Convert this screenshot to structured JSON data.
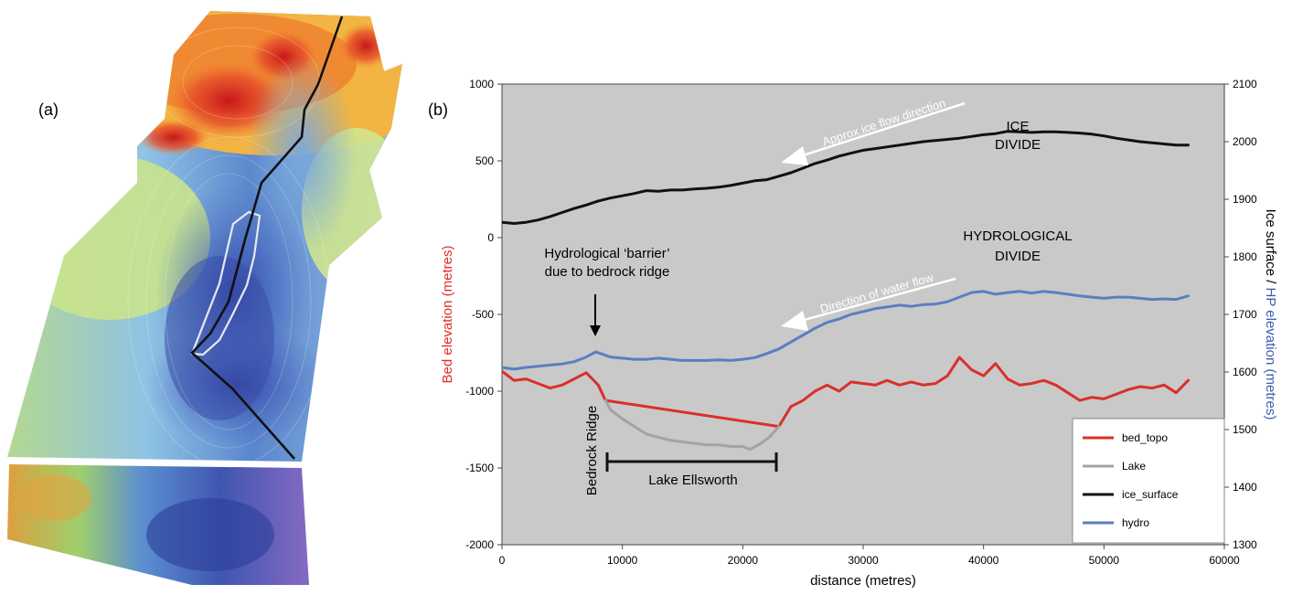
{
  "panel_a": {
    "label": "(a)"
  },
  "panel_b": {
    "label": "(b)"
  },
  "chart_data": {
    "type": "line",
    "title": "",
    "xlabel": "distance (metres)",
    "ylabel_left": "Bed elevation (metres)",
    "ylabel_right_parts": [
      "Ice surface / ",
      "HP elevation (metres)"
    ],
    "xlim": [
      0,
      60000
    ],
    "ylim_left": [
      -2000,
      1000
    ],
    "ylim_right": [
      1300,
      2100
    ],
    "x_ticks": [
      "0",
      "10000",
      "20000",
      "30000",
      "40000",
      "50000",
      "60000"
    ],
    "y_left_ticks": [
      "1000",
      "500",
      "0",
      "-500",
      "-1000",
      "-1500",
      "-2000"
    ],
    "y_right_ticks": [
      "2100",
      "2000",
      "1900",
      "1800",
      "1700",
      "1600",
      "1500",
      "1400",
      "1300"
    ],
    "grid": false,
    "legend_position": "bottom-right",
    "series": [
      {
        "name": "bed_topo",
        "color": "#d9302b",
        "axis": "left",
        "x": [
          0,
          1000,
          2000,
          3000,
          4000,
          5000,
          6000,
          7000,
          8000,
          8600,
          23000,
          24000,
          25000,
          26000,
          27000,
          28000,
          29000,
          30000,
          31000,
          32000,
          33000,
          34000,
          35000,
          36000,
          37000,
          38000,
          39000,
          40000,
          41000,
          42000,
          43000,
          44000,
          45000,
          46000,
          47000,
          48000,
          49000,
          50000,
          51000,
          52000,
          53000,
          54000,
          55000,
          56000,
          57000
        ],
        "y": [
          -870,
          -930,
          -920,
          -950,
          -980,
          -960,
          -920,
          -880,
          -960,
          -1060,
          -1230,
          -1100,
          -1060,
          -1000,
          -960,
          -1000,
          -940,
          -950,
          -960,
          -930,
          -960,
          -940,
          -960,
          -950,
          -900,
          -780,
          -860,
          -900,
          -820,
          -920,
          -960,
          -950,
          -930,
          -960,
          -1010,
          -1060,
          -1040,
          -1050,
          -1020,
          -990,
          -970,
          -980,
          -960,
          -1010,
          -930
        ]
      },
      {
        "name": "Lake",
        "color": "#a3a3a3",
        "axis": "left",
        "x": [
          8600,
          9000,
          10000,
          11000,
          12000,
          13000,
          14000,
          15000,
          16000,
          17000,
          18000,
          19000,
          20000,
          20600,
          21500,
          22200,
          23000
        ],
        "y": [
          -1060,
          -1120,
          -1180,
          -1230,
          -1280,
          -1300,
          -1320,
          -1330,
          -1340,
          -1350,
          -1350,
          -1360,
          -1360,
          -1380,
          -1340,
          -1300,
          -1230
        ]
      },
      {
        "name": "ice_surface",
        "color": "#111111",
        "axis": "right",
        "x": [
          0,
          1000,
          2000,
          3000,
          4000,
          5000,
          6000,
          7000,
          8000,
          9000,
          10000,
          11000,
          12000,
          13000,
          14000,
          15000,
          16000,
          17000,
          18000,
          19000,
          20000,
          21000,
          22000,
          23000,
          24000,
          25000,
          26000,
          27000,
          28000,
          29000,
          30000,
          31000,
          32000,
          33000,
          34000,
          35000,
          36000,
          37000,
          38000,
          39000,
          40000,
          41000,
          42000,
          43000,
          44000,
          45000,
          46000,
          47000,
          48000,
          49000,
          50000,
          51000,
          52000,
          53000,
          54000,
          55000,
          56000,
          57000
        ],
        "y": [
          1860,
          1858,
          1860,
          1864,
          1870,
          1877,
          1884,
          1890,
          1897,
          1902,
          1906,
          1910,
          1915,
          1914,
          1916,
          1916,
          1918,
          1919,
          1921,
          1924,
          1928,
          1932,
          1934,
          1940,
          1946,
          1954,
          1962,
          1968,
          1975,
          1980,
          1985,
          1988,
          1991,
          1994,
          1997,
          2000,
          2002,
          2004,
          2006,
          2009,
          2012,
          2014,
          2018,
          2017,
          2016,
          2017,
          2017,
          2016,
          2015,
          2013,
          2010,
          2006,
          2003,
          2000,
          1998,
          1996,
          1994,
          1994
        ]
      },
      {
        "name": "hydro",
        "color": "#5a7ec2",
        "axis": "right",
        "x": [
          0,
          1000,
          2000,
          3000,
          4000,
          5000,
          6000,
          7000,
          7800,
          9000,
          10000,
          11000,
          12000,
          13000,
          14000,
          15000,
          16000,
          17000,
          18000,
          19000,
          20000,
          21000,
          22000,
          23000,
          24000,
          25000,
          26000,
          27000,
          28000,
          29000,
          30000,
          31000,
          32000,
          33000,
          34000,
          35000,
          36000,
          37000,
          38000,
          39000,
          40000,
          41000,
          42000,
          43000,
          44000,
          45000,
          46000,
          47000,
          48000,
          49000,
          50000,
          51000,
          52000,
          53000,
          54000,
          55000,
          56000,
          57000
        ],
        "y": [
          1608,
          1605,
          1608,
          1610,
          1612,
          1614,
          1618,
          1626,
          1635,
          1626,
          1624,
          1622,
          1622,
          1624,
          1622,
          1620,
          1620,
          1620,
          1621,
          1620,
          1622,
          1625,
          1632,
          1640,
          1652,
          1664,
          1676,
          1686,
          1692,
          1700,
          1705,
          1710,
          1713,
          1716,
          1714,
          1717,
          1718,
          1722,
          1730,
          1738,
          1740,
          1735,
          1738,
          1740,
          1737,
          1740,
          1738,
          1735,
          1732,
          1730,
          1728,
          1730,
          1730,
          1728,
          1726,
          1727,
          1726,
          1732
        ]
      }
    ],
    "annotations": {
      "ice_divide": [
        "ICE",
        "DIVIDE"
      ],
      "hydro_divide": [
        "HYDROLOGICAL",
        "DIVIDE"
      ],
      "ice_flow": "Approx ice flow direction",
      "water_flow": "Direction of water flow",
      "barrier": [
        "Hydrological ‘barrier’",
        "due to bedrock ridge"
      ],
      "bedrock_ridge": "Bedrock Ridge",
      "lake_ellsworth": "Lake Ellsworth"
    }
  }
}
